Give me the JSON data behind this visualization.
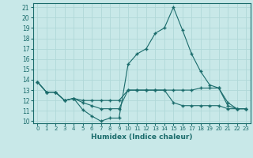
{
  "xlabel": "Humidex (Indice chaleur)",
  "background_color": "#c8e8e8",
  "grid_color": "#b0d8d8",
  "line_color": "#1a6b6b",
  "xlim": [
    -0.5,
    23.5
  ],
  "ylim": [
    9.8,
    21.4
  ],
  "yticks": [
    10,
    11,
    12,
    13,
    14,
    15,
    16,
    17,
    18,
    19,
    20,
    21
  ],
  "xticks": [
    0,
    1,
    2,
    3,
    4,
    5,
    6,
    7,
    8,
    9,
    10,
    11,
    12,
    13,
    14,
    15,
    16,
    17,
    18,
    19,
    20,
    21,
    22,
    23
  ],
  "series": [
    [
      13.8,
      12.8,
      12.8,
      12.0,
      12.2,
      11.1,
      10.5,
      10.0,
      10.3,
      10.3,
      15.5,
      16.5,
      17.0,
      18.5,
      19.0,
      21.0,
      18.8,
      16.5,
      14.8,
      13.5,
      13.2,
      11.5,
      11.2,
      11.2
    ],
    [
      13.8,
      12.8,
      12.8,
      12.0,
      12.2,
      12.0,
      12.0,
      12.0,
      12.0,
      12.0,
      13.0,
      13.0,
      13.0,
      13.0,
      13.0,
      13.0,
      13.0,
      13.0,
      13.2,
      13.2,
      13.2,
      11.8,
      11.2,
      11.2
    ],
    [
      13.8,
      12.8,
      12.8,
      12.0,
      12.2,
      11.8,
      11.5,
      11.2,
      11.2,
      11.2,
      13.0,
      13.0,
      13.0,
      13.0,
      13.0,
      11.8,
      11.5,
      11.5,
      11.5,
      11.5,
      11.5,
      11.2,
      11.2,
      11.2
    ]
  ]
}
